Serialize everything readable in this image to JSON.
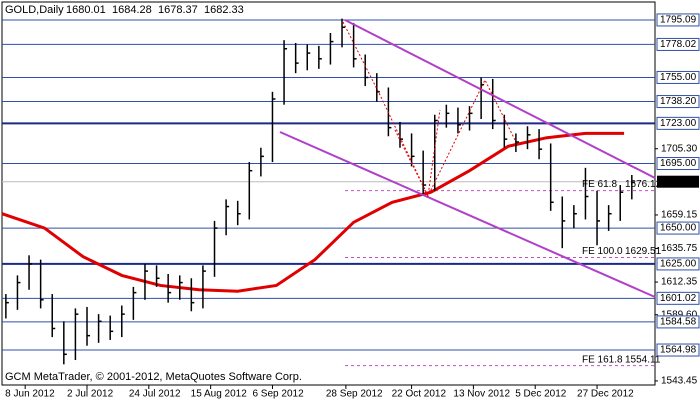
{
  "chart_data": {
    "type": "ohlc",
    "symbol": "GOLD,Daily",
    "ohlc": [
      1680.01,
      1684.28,
      1678.37,
      1682.33
    ],
    "footer": "GCM MetaTrader, © 2001-2012, MetaQuotes Software Corp.",
    "color": "#000000",
    "x": [
      0,
      3,
      6,
      9,
      12,
      15,
      18,
      21,
      24,
      27,
      30,
      33,
      36,
      39,
      42,
      45,
      48,
      51,
      54,
      57,
      60,
      63,
      66,
      69,
      72,
      75,
      78,
      81,
      84,
      87,
      90,
      93,
      96,
      99,
      102,
      105,
      108,
      111,
      114,
      117,
      120,
      123,
      126,
      129,
      132,
      135,
      138,
      141,
      144,
      147,
      150,
      153,
      156,
      159,
      162
    ],
    "high": [
      1604,
      1617,
      1631,
      1628,
      1604,
      1585,
      1594,
      1595,
      1590,
      1589,
      1596,
      1609,
      1625,
      1624,
      1618,
      1617,
      1615,
      1624,
      1655,
      1670,
      1669,
      1696,
      1706,
      1745,
      1781,
      1779,
      1778,
      1777,
      1786,
      1796,
      1793,
      1771,
      1758,
      1748,
      1724,
      1716,
      1704,
      1729,
      1736,
      1734,
      1735,
      1755,
      1754,
      1729,
      1716,
      1721,
      1719,
      1709,
      1672,
      1666,
      1692,
      1676,
      1666,
      1680,
      1687
    ],
    "low": [
      1587,
      1593,
      1607,
      1594,
      1574,
      1555,
      1558,
      1568,
      1570,
      1572,
      1574,
      1586,
      1600,
      1609,
      1598,
      1600,
      1592,
      1594,
      1616,
      1645,
      1652,
      1656,
      1686,
      1696,
      1736,
      1758,
      1760,
      1761,
      1764,
      1776,
      1762,
      1749,
      1738,
      1714,
      1706,
      1693,
      1673,
      1676,
      1720,
      1716,
      1718,
      1726,
      1719,
      1706,
      1703,
      1705,
      1698,
      1662,
      1636,
      1650,
      1656,
      1638,
      1648,
      1655,
      1670
    ],
    "close": [
      1598,
      1612,
      1625,
      1600,
      1580,
      1562,
      1590,
      1575,
      1585,
      1578,
      1590,
      1605,
      1620,
      1615,
      1605,
      1612,
      1598,
      1620,
      1650,
      1665,
      1660,
      1690,
      1700,
      1740,
      1775,
      1765,
      1772,
      1768,
      1780,
      1790,
      1768,
      1755,
      1745,
      1720,
      1712,
      1700,
      1680,
      1725,
      1730,
      1722,
      1730,
      1750,
      1725,
      1712,
      1710,
      1715,
      1705,
      1668,
      1655,
      1660,
      1672,
      1655,
      1660,
      1675,
      1682
    ],
    "moving_average": {
      "color": "#e00000",
      "x": [
        -1,
        10,
        20,
        30,
        40,
        50,
        60,
        70,
        80,
        90,
        100,
        110,
        120,
        130,
        140,
        150,
        160
      ],
      "values": [
        1660,
        1650,
        1630,
        1617,
        1610,
        1607,
        1606,
        1610,
        1628,
        1654,
        1668,
        1675,
        1690,
        1707,
        1713,
        1716,
        1716
      ]
    },
    "xlim": [
      -1,
      168
    ],
    "xticks": [
      {
        "value": 5,
        "label": "8 Jun 2012"
      },
      {
        "value": 21,
        "label": "2 Jul 2012"
      },
      {
        "value": 37,
        "label": "24 Jul 2012"
      },
      {
        "value": 53,
        "label": "15 Aug 2012"
      },
      {
        "value": 69,
        "label": "6 Sep 2012"
      },
      {
        "value": 88,
        "label": "28 Sep 2012"
      },
      {
        "value": 105,
        "label": "22 Oct 2012"
      },
      {
        "value": 121,
        "label": "13 Nov 2012"
      },
      {
        "value": 137,
        "label": "5 Dec 2012"
      },
      {
        "value": 153,
        "label": "27 Dec 2012"
      }
    ],
    "ylim": [
      1540.6,
      1807.6
    ],
    "yticks": [
      {
        "value": 1705.3,
        "label": "1705.30"
      },
      1659.15,
      1635.75,
      1612.35,
      {
        "value": 1589.6,
        "label": "1589.60"
      },
      1543.45
    ],
    "levels": [
      1795.09,
      1778.02,
      {
        "value": 1755,
        "label": "1755.00"
      },
      {
        "value": 1738.2,
        "label": "1738.20"
      },
      {
        "value": 1723,
        "label": "1723.00"
      },
      {
        "value": 1695,
        "label": "1695.00"
      },
      {
        "value": 1650,
        "label": "1650.00"
      },
      {
        "value": 1625,
        "label": "1625.00"
      },
      1601.02,
      1584.58,
      1564.98
    ],
    "fibo": [
      {
        "label": "FE 61.8",
        "price": 1676.12
      },
      {
        "label": "FE 100.0",
        "price": 1629.51
      },
      {
        "label": "FE 161.8",
        "price": 1554.11
      }
    ]
  }
}
